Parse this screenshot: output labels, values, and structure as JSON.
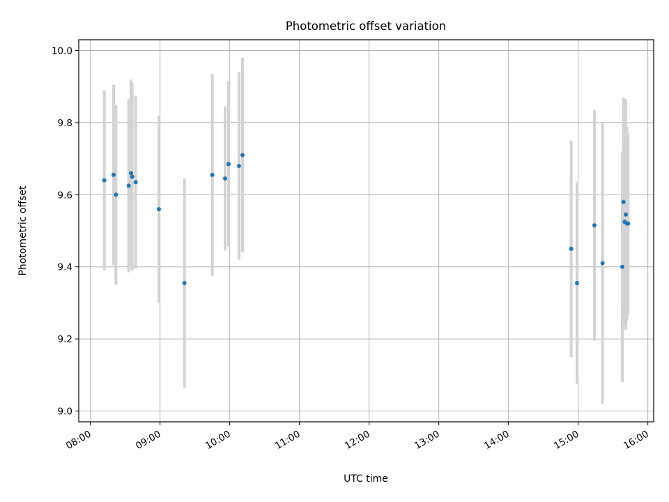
{
  "chart_data": {
    "type": "scatter",
    "title": "Photometric offset variation",
    "xlabel": "UTC time",
    "ylabel": "Photometric offset",
    "x_unit": "HH:MM",
    "xlim": [
      "07:50",
      "16:05"
    ],
    "ylim": [
      8.97,
      10.03
    ],
    "grid": true,
    "x_ticks": [
      "08:00",
      "09:00",
      "10:00",
      "11:00",
      "12:00",
      "13:00",
      "14:00",
      "15:00",
      "16:00"
    ],
    "y_ticks": [
      "9.0",
      "9.2",
      "9.4",
      "9.6",
      "9.8",
      "10.0"
    ],
    "colors": {
      "points": "#1f77b4",
      "errorbars": "#d3d3d3",
      "grid": "#b0b0b0"
    },
    "series": [
      {
        "points": [
          {
            "x": "08:12",
            "y": 9.64,
            "err": 0.25
          },
          {
            "x": "08:20",
            "y": 9.655,
            "err": 0.25
          },
          {
            "x": "08:22",
            "y": 9.6,
            "err": 0.25
          },
          {
            "x": "08:33",
            "y": 9.625,
            "err": 0.24
          },
          {
            "x": "08:35",
            "y": 9.66,
            "err": 0.26
          },
          {
            "x": "08:36",
            "y": 9.65,
            "err": 0.26
          },
          {
            "x": "08:39",
            "y": 9.635,
            "err": 0.24
          },
          {
            "x": "08:59",
            "y": 9.56,
            "err": 0.26
          },
          {
            "x": "09:21",
            "y": 9.355,
            "err": 0.29
          },
          {
            "x": "09:45",
            "y": 9.655,
            "err": 0.28
          },
          {
            "x": "09:56",
            "y": 9.645,
            "err": 0.2
          },
          {
            "x": "09:59",
            "y": 9.685,
            "err": 0.23
          },
          {
            "x": "10:08",
            "y": 9.68,
            "err": 0.26
          },
          {
            "x": "10:11",
            "y": 9.71,
            "err": 0.27
          },
          {
            "x": "14:54",
            "y": 9.45,
            "err": 0.3
          },
          {
            "x": "14:59",
            "y": 9.355,
            "err": 0.28
          },
          {
            "x": "15:14",
            "y": 9.515,
            "err": 0.32
          },
          {
            "x": "15:21",
            "y": 9.41,
            "err": 0.39
          },
          {
            "x": "15:38",
            "y": 9.4,
            "err": 0.32
          },
          {
            "x": "15:39",
            "y": 9.58,
            "err": 0.29
          },
          {
            "x": "15:40",
            "y": 9.525,
            "err": 0.29
          },
          {
            "x": "15:41",
            "y": 9.545,
            "err": 0.32
          },
          {
            "x": "15:42",
            "y": 9.52,
            "err": 0.27
          },
          {
            "x": "15:43",
            "y": 9.52,
            "err": 0.25
          }
        ]
      }
    ]
  }
}
